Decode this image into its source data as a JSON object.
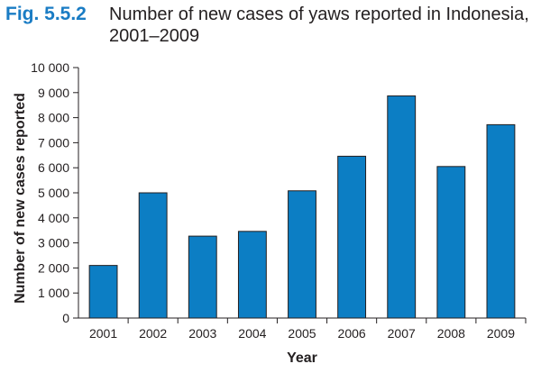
{
  "figure": {
    "label": "Fig. 5.5.2",
    "title": "Number of new cases of yaws reported in Indonesia, 2001–2009"
  },
  "chart_data": {
    "type": "bar",
    "title": "Number of new cases of yaws reported in Indonesia, 2001–2009",
    "xlabel": "Year",
    "ylabel": "Number of new cases reported",
    "categories": [
      "2001",
      "2002",
      "2003",
      "2004",
      "2005",
      "2006",
      "2007",
      "2008",
      "2009"
    ],
    "values": [
      2100,
      5000,
      3270,
      3460,
      5080,
      6460,
      8870,
      6050,
      7720
    ],
    "ylim": [
      0,
      10000
    ],
    "yticks": [
      0,
      1000,
      2000,
      3000,
      4000,
      5000,
      6000,
      7000,
      8000,
      9000,
      10000
    ],
    "ytick_labels": [
      "0",
      "1 000",
      "2 000",
      "3 000",
      "4 000",
      "5 000",
      "6 000",
      "7 000",
      "8 000",
      "9 000",
      "10 000"
    ],
    "bar_color": "#0c7ec4",
    "bar_edge_color": "#231f20",
    "grid": false,
    "legend": "none"
  }
}
